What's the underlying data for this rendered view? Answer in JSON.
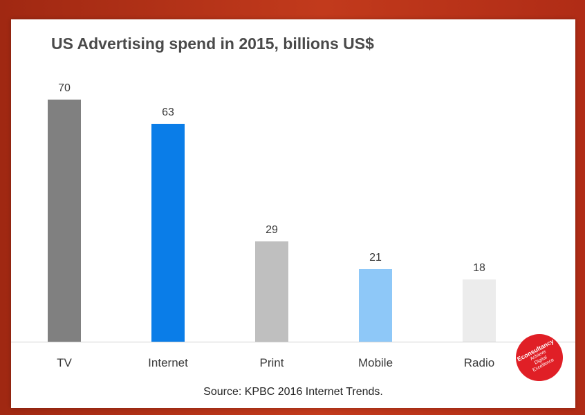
{
  "chart_data": {
    "type": "bar",
    "title": "US Advertising spend in 2015, billions US$",
    "categories": [
      "TV",
      "Internet",
      "Print",
      "Mobile",
      "Radio"
    ],
    "values": [
      70,
      63,
      29,
      21,
      18
    ],
    "colors": [
      "#808080",
      "#0a7de8",
      "#bfbfbf",
      "#8ec8f8",
      "#ececec"
    ],
    "xlabel": "",
    "ylabel": "",
    "ylim": [
      0,
      70
    ],
    "grid": false,
    "legend": "none"
  },
  "source": "Source: KPBC 2016 Internet Trends.",
  "badge": {
    "brand": "Econsultancy",
    "tagline_1": "Achieve",
    "tagline_2": "Digital",
    "tagline_3": "Excellence"
  },
  "colors": {
    "frame": "#b5301a",
    "badge": "#e01f26"
  }
}
